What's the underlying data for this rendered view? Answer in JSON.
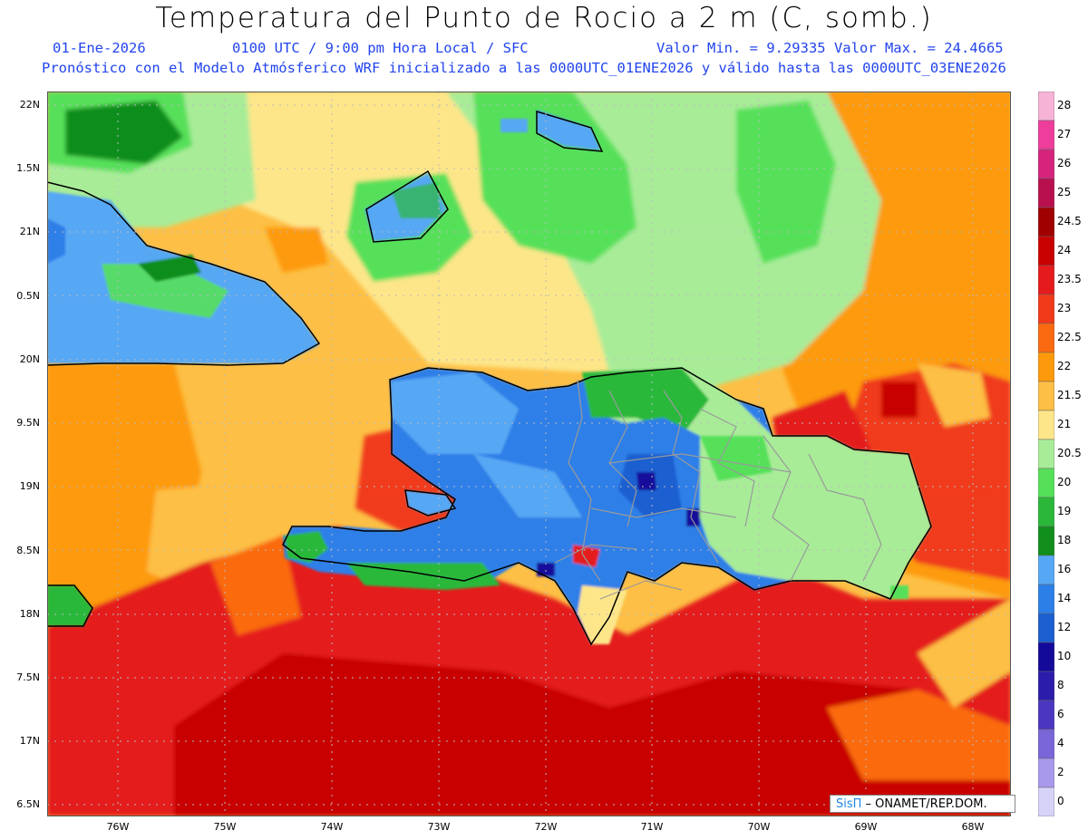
{
  "header": {
    "title": "Temperatura del Punto de Rocio a 2 m (C, somb.)",
    "date": "01-Ene-2026",
    "time": "0100 UTC / 9:00 pm Hora Local / SFC",
    "min_max": "Valor Min. = 9.29335  Valor Max. = 24.4665",
    "model_info": "Pronóstico con el Modelo Atmósferico WRF inicializado a las 0000UTC_01ENE2026 y válido hasta las  0000UTC_03ENE2026"
  },
  "axes": {
    "lat_ticks": [
      "22N",
      "1.5N",
      "21N",
      "0.5N",
      "20N",
      "9.5N",
      "19N",
      "8.5N",
      "18N",
      "7.5N",
      "17N",
      "6.5N"
    ],
    "lon_ticks": [
      "76W",
      "75W",
      "74W",
      "73W",
      "72W",
      "71W",
      "70W",
      "69W",
      "68W"
    ]
  },
  "colorbar": {
    "labels": [
      "28",
      "27",
      "26",
      "25",
      "24.5",
      "24",
      "23.5",
      "23",
      "22.5",
      "22",
      "21.5",
      "21",
      "20.5",
      "20",
      "19",
      "18",
      "16",
      "14",
      "12",
      "10",
      "8",
      "6",
      "4",
      "2",
      "0"
    ],
    "colors": [
      "#f7b3d6",
      "#ee3d9a",
      "#d6247c",
      "#b8104f",
      "#a00000",
      "#c80000",
      "#e41a1c",
      "#f03a1a",
      "#fb6a10",
      "#fd9a0c",
      "#fdbf45",
      "#fde68a",
      "#a8ec98",
      "#56e05a",
      "#2bb83a",
      "#118e1c",
      "#56a7f4",
      "#2d7fe8",
      "#1b5fd0",
      "#140a9a",
      "#2b1cac",
      "#4a36c0",
      "#7a66d8",
      "#a999ec",
      "#d6d2f8"
    ]
  },
  "credit": {
    "sis": "SisΠ",
    "rest": " – ONAMET/REP.DOM."
  }
}
